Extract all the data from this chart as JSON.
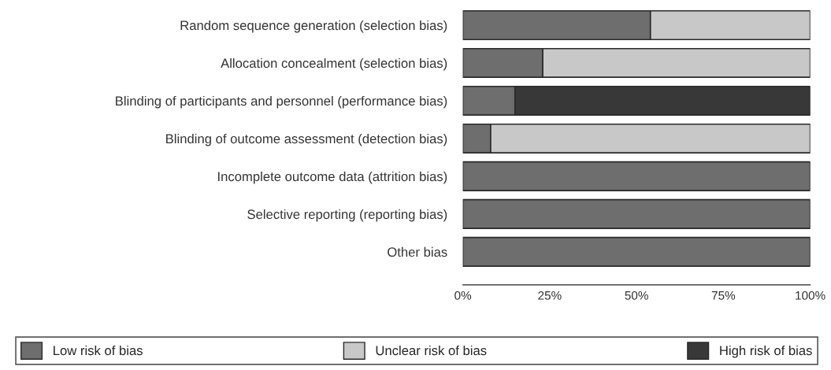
{
  "chart_data": {
    "type": "bar",
    "orientation": "horizontal",
    "stacked": true,
    "categories": [
      "Random sequence generation (selection bias)",
      "Allocation concealment (selection bias)",
      "Blinding of participants and personnel (performance bias)",
      "Blinding of outcome assessment (detection bias)",
      "Incomplete outcome data (attrition bias)",
      "Selective reporting (reporting bias)",
      "Other bias"
    ],
    "series": [
      {
        "name": "Low risk of bias",
        "color": "#6e6e6e",
        "values": [
          54,
          23,
          15,
          8,
          100,
          100,
          100
        ]
      },
      {
        "name": "Unclear risk of bias",
        "color": "#c8c8c8",
        "values": [
          46,
          77,
          null,
          92,
          null,
          null,
          null
        ]
      },
      {
        "name": "High risk of bias",
        "color": "#383838",
        "values": [
          null,
          null,
          85,
          null,
          null,
          null,
          null
        ]
      }
    ],
    "xlim": [
      0,
      100
    ],
    "xticks": [
      {
        "value": 0,
        "label": "0%"
      },
      {
        "value": 25,
        "label": "25%"
      },
      {
        "value": 50,
        "label": "50%"
      },
      {
        "value": 75,
        "label": "75%"
      },
      {
        "value": 100,
        "label": "100%"
      }
    ],
    "grid": false,
    "legend": "bottom"
  }
}
